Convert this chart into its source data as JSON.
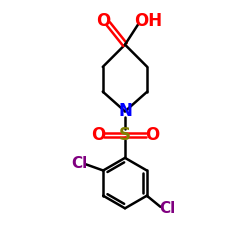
{
  "bg_color": "#ffffff",
  "bond_color": "#000000",
  "N_color": "#0000ff",
  "O_color": "#ff0000",
  "S_color": "#808000",
  "Cl_color": "#800080",
  "line_width": 1.8,
  "font_size_atoms": 10,
  "fig_width": 2.5,
  "fig_height": 2.5,
  "dpi": 100,
  "xlim": [
    0,
    10
  ],
  "ylim": [
    0,
    10
  ]
}
